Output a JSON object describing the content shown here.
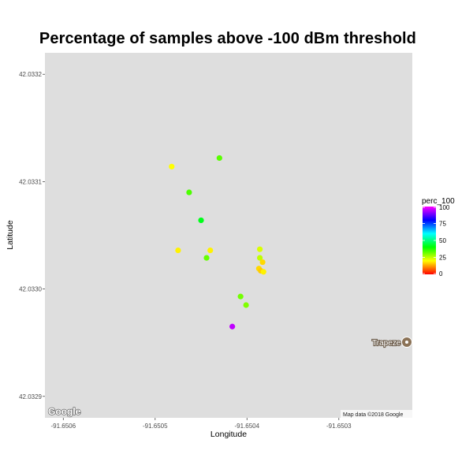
{
  "chart_data": {
    "type": "scatter",
    "title": "Percentage of samples above -100 dBm threshold",
    "xlabel": "Longitude",
    "ylabel": "Latitude",
    "xlim": [
      -91.65062,
      -91.65022
    ],
    "ylim": [
      42.03288,
      42.03322
    ],
    "xticks": [
      {
        "value": -91.6506,
        "label": "-91.6506"
      },
      {
        "value": -91.6505,
        "label": "-91.6505"
      },
      {
        "value": -91.6504,
        "label": "-91.6504"
      },
      {
        "value": -91.6503,
        "label": "-91.6503"
      }
    ],
    "yticks": [
      {
        "value": 42.0329,
        "label": "42.0329"
      },
      {
        "value": 42.033,
        "label": "42.0330"
      },
      {
        "value": 42.0331,
        "label": "42.0331"
      },
      {
        "value": 42.0332,
        "label": "42.0332"
      }
    ],
    "legend": {
      "title": "perc_100",
      "position": "right",
      "range": [
        0,
        100
      ],
      "ticks": [
        {
          "value": 100,
          "label": "100"
        },
        {
          "value": 75,
          "label": "75"
        },
        {
          "value": 50,
          "label": "50"
        },
        {
          "value": 25,
          "label": "25"
        },
        {
          "value": 0,
          "label": "0"
        }
      ],
      "colors": [
        "#ff0000",
        "#ffff00",
        "#00ff00",
        "#00ffff",
        "#0000ff",
        "#ff00ff"
      ]
    },
    "points": [
      {
        "x": -91.650482,
        "y": 42.033114,
        "value": 20
      },
      {
        "x": -91.65043,
        "y": 42.033122,
        "value": 33
      },
      {
        "x": -91.650463,
        "y": 42.03309,
        "value": 34
      },
      {
        "x": -91.65045,
        "y": 42.033064,
        "value": 42
      },
      {
        "x": -91.650475,
        "y": 42.033036,
        "value": 19
      },
      {
        "x": -91.65044,
        "y": 42.033036,
        "value": 19
      },
      {
        "x": -91.650444,
        "y": 42.033029,
        "value": 32
      },
      {
        "x": -91.650386,
        "y": 42.033037,
        "value": 23
      },
      {
        "x": -91.650386,
        "y": 42.033029,
        "value": 25
      },
      {
        "x": -91.650383,
        "y": 42.033025,
        "value": 17
      },
      {
        "x": -91.650387,
        "y": 42.033019,
        "value": 17
      },
      {
        "x": -91.650385,
        "y": 42.033017,
        "value": 16
      },
      {
        "x": -91.650382,
        "y": 42.033016,
        "value": 19
      },
      {
        "x": -91.650407,
        "y": 42.032993,
        "value": 31
      },
      {
        "x": -91.650401,
        "y": 42.032985,
        "value": 30
      },
      {
        "x": -91.650416,
        "y": 42.032965,
        "value": 95
      }
    ],
    "grid": false
  },
  "map": {
    "background": "#dedede",
    "place_label": "Trapeze",
    "attribution": "Map data ©2018 Google",
    "logo_text": "Google"
  }
}
